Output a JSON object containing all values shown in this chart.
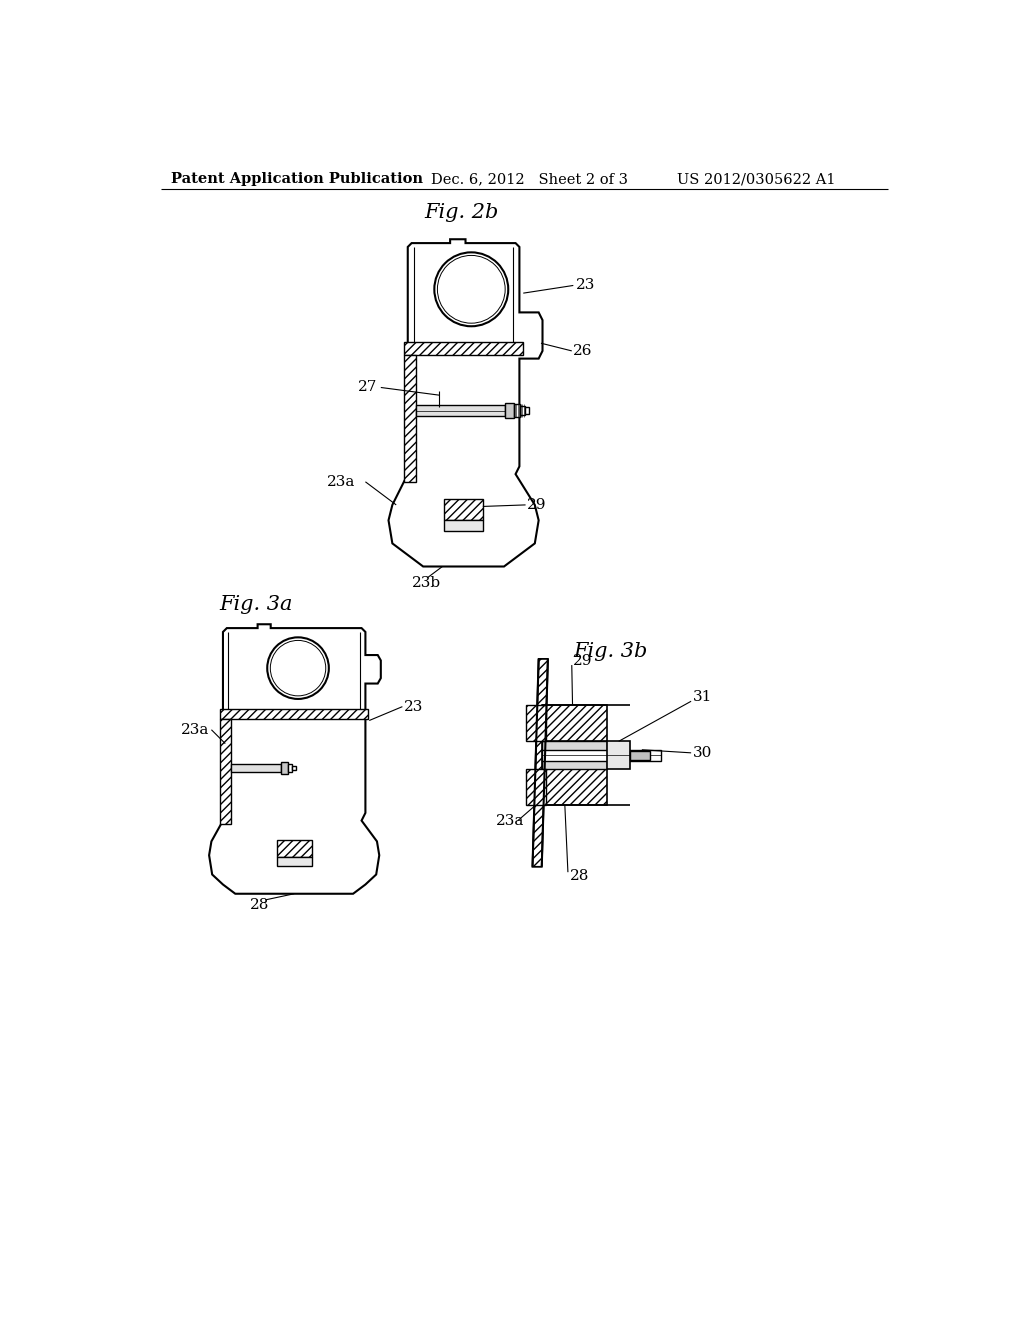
{
  "background_color": "#ffffff",
  "header_left": "Patent Application Publication",
  "header_mid": "Dec. 6, 2012   Sheet 2 of 3",
  "header_right": "US 2012/0305622 A1",
  "fig2b_title": "Fig. 2b",
  "fig3a_title": "Fig. 3a",
  "fig3b_title": "Fig. 3b",
  "line_color": "#000000",
  "font_size_header": 10.5,
  "font_size_fig_title": 15,
  "font_size_label": 11
}
